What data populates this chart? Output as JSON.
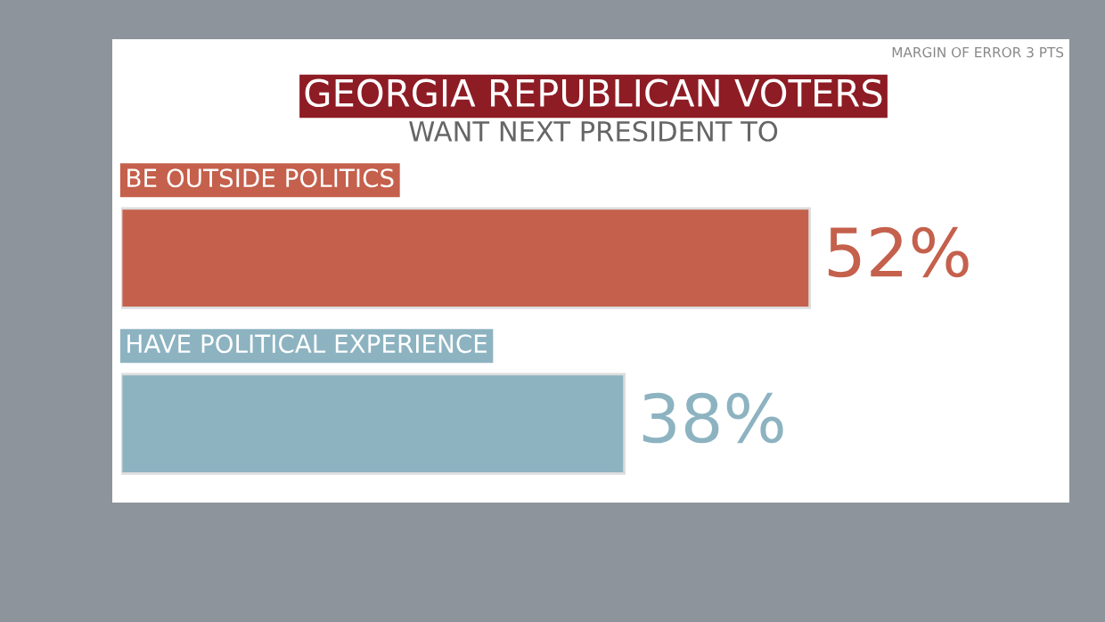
{
  "chart_data": {
    "type": "bar",
    "orientation": "horizontal",
    "title": "GEORGIA REPUBLICAN VOTERS",
    "subtitle": "WANT NEXT PRESIDENT TO",
    "categories": [
      "BE OUTSIDE POLITICS",
      "HAVE POLITICAL EXPERIENCE"
    ],
    "values": [
      52,
      38
    ],
    "colors": [
      "#c4604c",
      "#8db3c1"
    ],
    "value_labels": [
      "52%",
      "38%"
    ],
    "annotations": [
      "MARGIN OF ERROR 3 PTS"
    ]
  }
}
